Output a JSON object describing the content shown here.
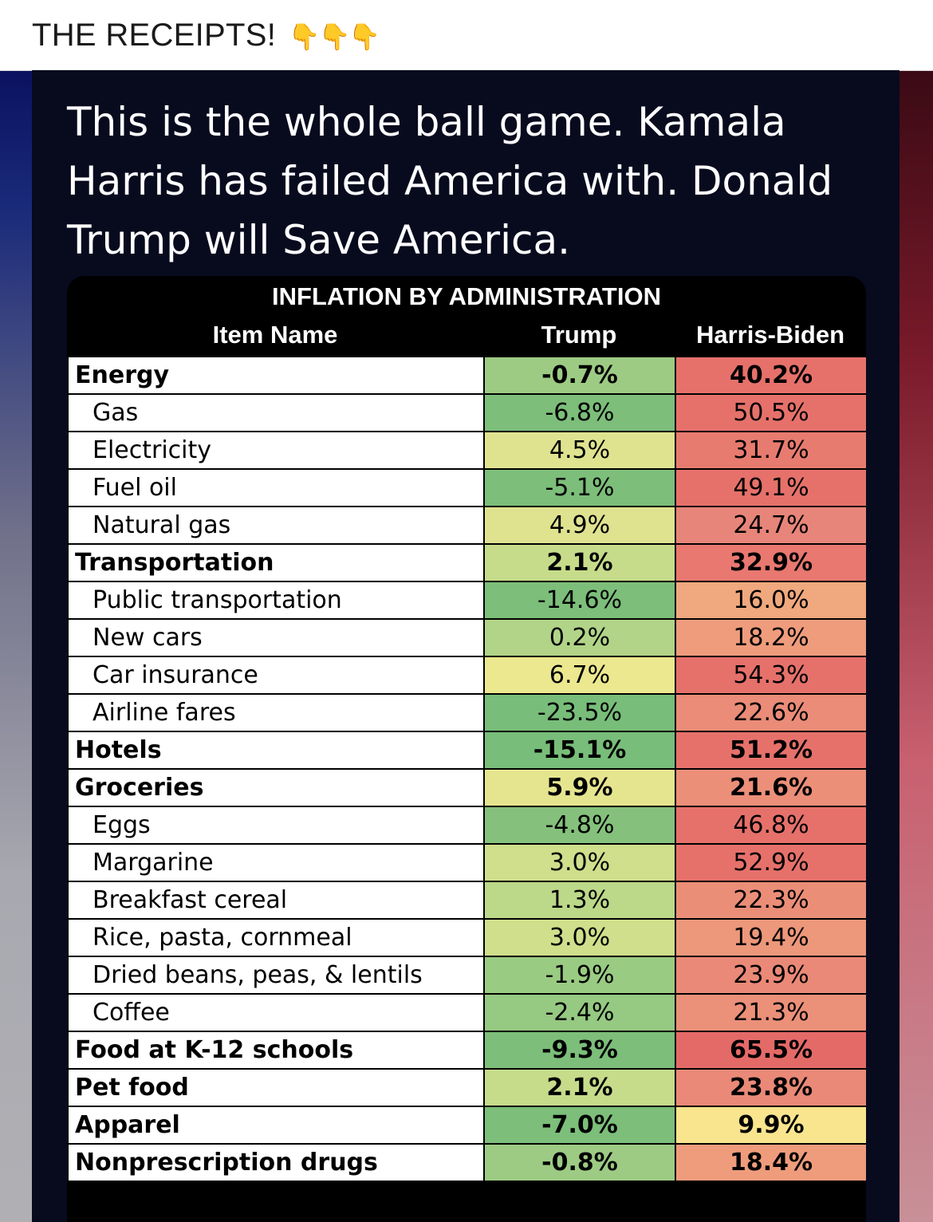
{
  "header": {
    "title": "THE RECEIPTS!",
    "emoji": "👇👇👇"
  },
  "post": {
    "text": "This is the whole ball game. Kamala Harris has failed America with. Donald Trump will Save America."
  },
  "table": {
    "title": "INFLATION BY ADMINISTRATION",
    "columns": [
      "Item Name",
      "Trump",
      "Harris-Biden"
    ],
    "rows": [
      {
        "name": "Energy",
        "trump": "-0.7%",
        "harris": "40.2%",
        "bold": true,
        "trump_color": "#9dcb84",
        "harris_color": "#e6716b"
      },
      {
        "name": "Gas",
        "trump": "-6.8%",
        "harris": "50.5%",
        "bold": false,
        "trump_color": "#7cbe7a",
        "harris_color": "#e6716b"
      },
      {
        "name": "Electricity",
        "trump": "4.5%",
        "harris": "31.7%",
        "bold": false,
        "trump_color": "#dfe390",
        "harris_color": "#e87b6f"
      },
      {
        "name": "Fuel oil",
        "trump": "-5.1%",
        "harris": "49.1%",
        "bold": false,
        "trump_color": "#7cbe7a",
        "harris_color": "#e6716b"
      },
      {
        "name": "Natural gas",
        "trump": "4.9%",
        "harris": "24.7%",
        "bold": false,
        "trump_color": "#dfe390",
        "harris_color": "#e8857a"
      },
      {
        "name": "Transportation",
        "trump": "2.1%",
        "harris": "32.9%",
        "bold": true,
        "trump_color": "#c6dc8a",
        "harris_color": "#e87870"
      },
      {
        "name": "Public transportation",
        "trump": "-14.6%",
        "harris": "16.0%",
        "bold": false,
        "trump_color": "#7cbe7a",
        "harris_color": "#f0a87e"
      },
      {
        "name": "New cars",
        "trump": "0.2%",
        "harris": "18.2%",
        "bold": false,
        "trump_color": "#b1d488",
        "harris_color": "#ee9c7c"
      },
      {
        "name": "Car insurance",
        "trump": "6.7%",
        "harris": "54.3%",
        "bold": false,
        "trump_color": "#ece88f",
        "harris_color": "#e6716b"
      },
      {
        "name": "Airline fares",
        "trump": "-23.5%",
        "harris": "22.6%",
        "bold": false,
        "trump_color": "#78bd7a",
        "harris_color": "#ea8c78"
      },
      {
        "name": "Hotels",
        "trump": "-15.1%",
        "harris": "51.2%",
        "bold": true,
        "trump_color": "#78bd7a",
        "harris_color": "#e6716b"
      },
      {
        "name": "Groceries",
        "trump": "5.9%",
        "harris": "21.6%",
        "bold": true,
        "trump_color": "#e6e58f",
        "harris_color": "#eb8f79"
      },
      {
        "name": "Eggs",
        "trump": "-4.8%",
        "harris": "46.8%",
        "bold": false,
        "trump_color": "#85c17c",
        "harris_color": "#e6716b"
      },
      {
        "name": "Margarine",
        "trump": "3.0%",
        "harris": "52.9%",
        "bold": false,
        "trump_color": "#cfdf8c",
        "harris_color": "#e6716b"
      },
      {
        "name": "Breakfast cereal",
        "trump": "1.3%",
        "harris": "22.3%",
        "bold": false,
        "trump_color": "#bcd889",
        "harris_color": "#eb8e78"
      },
      {
        "name": "Rice, pasta, cornmeal",
        "trump": "3.0%",
        "harris": "19.4%",
        "bold": false,
        "trump_color": "#cfdf8c",
        "harris_color": "#ed977b"
      },
      {
        "name": "Dried beans, peas, & lentils",
        "trump": "-1.9%",
        "harris": "23.9%",
        "bold": false,
        "trump_color": "#9acb83",
        "harris_color": "#ea8977"
      },
      {
        "name": "Coffee",
        "trump": "-2.4%",
        "harris": "21.3%",
        "bold": false,
        "trump_color": "#96c982",
        "harris_color": "#eb9079"
      },
      {
        "name": "Food at K-12 schools",
        "trump": "-9.3%",
        "harris": "65.5%",
        "bold": true,
        "trump_color": "#7cbe7a",
        "harris_color": "#e46a68"
      },
      {
        "name": "Pet food",
        "trump": "2.1%",
        "harris": "23.8%",
        "bold": true,
        "trump_color": "#c6dc8a",
        "harris_color": "#ea8977"
      },
      {
        "name": "Apparel",
        "trump": "-7.0%",
        "harris": "9.9%",
        "bold": true,
        "trump_color": "#7cbe7a",
        "harris_color": "#f9e58e"
      },
      {
        "name": "Nonprescription drugs",
        "trump": "-0.8%",
        "harris": "18.4%",
        "bold": true,
        "trump_color": "#9dcb84",
        "harris_color": "#ee9c7c"
      }
    ]
  }
}
